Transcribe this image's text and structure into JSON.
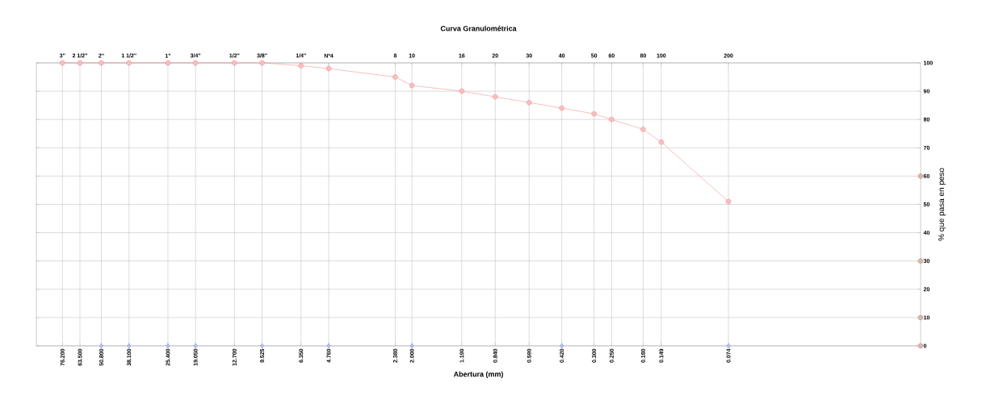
{
  "chart_data": {
    "type": "line",
    "title": "Curva Granulométrica",
    "xlabel": "Abertura (mm)",
    "ylabel": "% que pasa en peso",
    "log": "x",
    "grid": true,
    "xlim": [
      100,
      0.01
    ],
    "ylim": [
      0,
      100
    ],
    "yticks": [
      0,
      10,
      20,
      30,
      40,
      50,
      60,
      70,
      80,
      90,
      100
    ],
    "xticks": [
      {
        "value": 76.2,
        "label": "76.200"
      },
      {
        "value": 63.5,
        "label": "63.500"
      },
      {
        "value": 50.8,
        "label": "50.800"
      },
      {
        "value": 38.1,
        "label": "38.100"
      },
      {
        "value": 25.4,
        "label": "25.400"
      },
      {
        "value": 19.05,
        "label": "19.050"
      },
      {
        "value": 12.7,
        "label": "12.700"
      },
      {
        "value": 9.525,
        "label": "9.525"
      },
      {
        "value": 6.35,
        "label": "6.350"
      },
      {
        "value": 4.76,
        "label": "4.760"
      },
      {
        "value": 2.38,
        "label": "2.380"
      },
      {
        "value": 2.0,
        "label": "2.000"
      },
      {
        "value": 1.19,
        "label": "1.190"
      },
      {
        "value": 0.84,
        "label": "0.840"
      },
      {
        "value": 0.59,
        "label": "0.590"
      },
      {
        "value": 0.42,
        "label": "0.420"
      },
      {
        "value": 0.3,
        "label": "0.300"
      },
      {
        "value": 0.25,
        "label": "0.250"
      },
      {
        "value": 0.18,
        "label": "0.180"
      },
      {
        "value": 0.149,
        "label": "0.149"
      },
      {
        "value": 0.074,
        "label": "0.074"
      }
    ],
    "annotations": [
      {
        "text": "3\"",
        "x": 76.2
      },
      {
        "text": "2 1/2\"",
        "x": 63.5
      },
      {
        "text": "2\"",
        "x": 50.8
      },
      {
        "text": "1 1/2\"",
        "x": 38.1
      },
      {
        "text": "1\"",
        "x": 25.4
      },
      {
        "text": "3/4\"",
        "x": 19.05
      },
      {
        "text": "1/2\"",
        "x": 12.7
      },
      {
        "text": "3/8\"",
        "x": 9.525
      },
      {
        "text": "1/4\"",
        "x": 6.35
      },
      {
        "text": "Nº4",
        "x": 4.76
      },
      {
        "text": "8",
        "x": 2.38
      },
      {
        "text": "10",
        "x": 2.0
      },
      {
        "text": "16",
        "x": 1.19
      },
      {
        "text": "20",
        "x": 0.84
      },
      {
        "text": "30",
        "x": 0.59
      },
      {
        "text": "40",
        "x": 0.42
      },
      {
        "text": "50",
        "x": 0.3
      },
      {
        "text": "60",
        "x": 0.25
      },
      {
        "text": "80",
        "x": 0.18
      },
      {
        "text": "100",
        "x": 0.149
      },
      {
        "text": "200",
        "x": 0.074
      }
    ],
    "series": [
      {
        "color": "#f08080",
        "marker": "circle",
        "x": [
          76.2,
          63.5,
          50.8,
          38.1,
          25.4,
          19.05,
          12.7,
          9.525,
          6.35,
          4.76,
          2.38,
          2.0,
          1.19,
          0.84,
          0.59,
          0.42,
          0.3,
          0.25,
          0.18,
          0.149,
          0.074
        ],
        "values": [
          100,
          100,
          100,
          100,
          100,
          100,
          100,
          100,
          99,
          98,
          95,
          92,
          90,
          88,
          86,
          84,
          82,
          80,
          76.5,
          72,
          51
        ]
      },
      {
        "type": "scatter",
        "color": "#7080e0",
        "marker": "diamond",
        "x": [
          50.8,
          38.1,
          25.4,
          19.05,
          9.525,
          4.76,
          2.0,
          0.42,
          0.074
        ],
        "values": [
          0,
          0,
          0,
          0,
          0,
          0,
          0,
          0,
          0
        ]
      },
      {
        "type": "scatter",
        "color": "#b07060",
        "marker": "circle",
        "x": [
          0.01,
          0.01,
          0.01,
          0.01
        ],
        "values": [
          60,
          30,
          10,
          0
        ]
      }
    ]
  }
}
